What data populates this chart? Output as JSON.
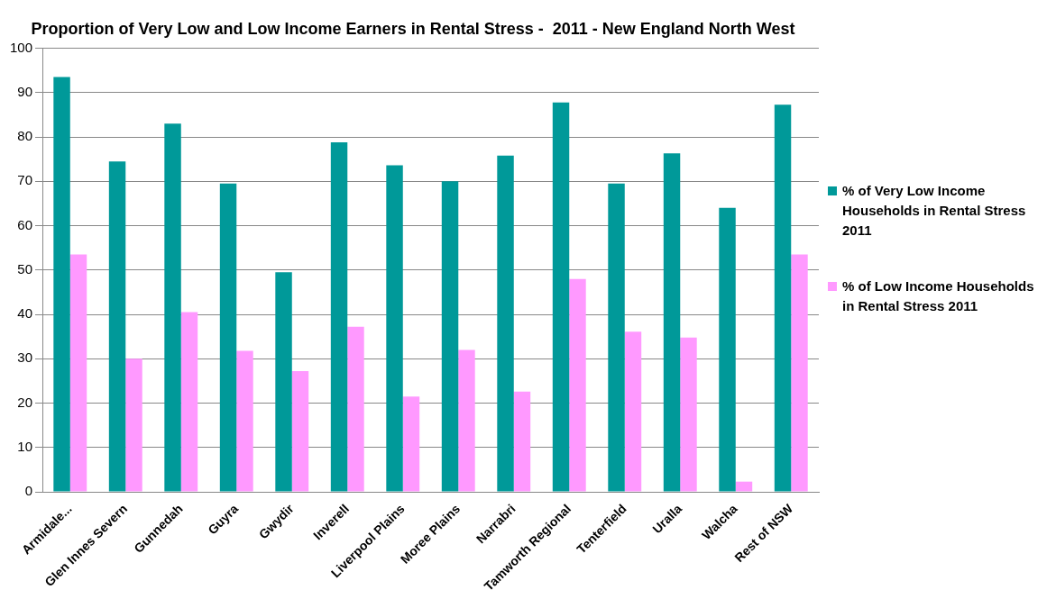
{
  "chart_data": {
    "type": "bar",
    "title": "Proportion of Very Low and Low Income Earners in Rental Stress -  2011 - New England North West",
    "categories": [
      "Armidale...",
      "Glen Innes Severn",
      "Gunnedah",
      "Guyra",
      "Gwydir",
      "Inverell",
      "Liverpool Plains",
      "Moree Plains",
      "Narrabri",
      "Tamworth Regional",
      "Tenterfield",
      "Uralla",
      "Walcha",
      "Rest of NSW"
    ],
    "series": [
      {
        "name": "% of Very Low Income Households in Rental Stress 2011",
        "color": "#009999",
        "values": [
          93.5,
          74.5,
          83,
          69.5,
          49.5,
          78.8,
          73.6,
          70,
          75.8,
          87.8,
          69.5,
          76.3,
          64,
          87.3
        ]
      },
      {
        "name": "% of Low Income Households in Rental Stress 2011",
        "color": "#ff99ff",
        "values": [
          53.5,
          30,
          40.5,
          31.8,
          27.2,
          37.2,
          21.5,
          32,
          22.6,
          48,
          36.1,
          34.8,
          2.3,
          53.5
        ]
      }
    ],
    "ylim": [
      0,
      100
    ],
    "yticks": [
      0,
      10,
      20,
      30,
      40,
      50,
      60,
      70,
      80,
      90,
      100
    ],
    "grid": "y",
    "legend": "right"
  }
}
